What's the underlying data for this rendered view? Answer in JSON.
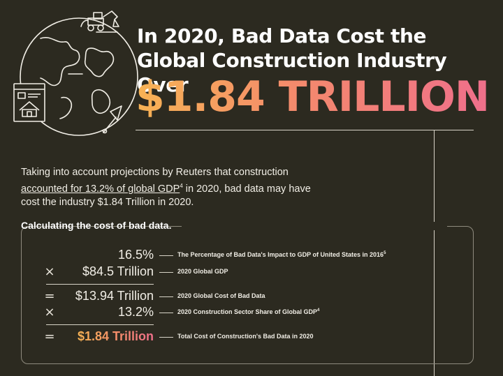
{
  "header": {
    "title": "In 2020, Bad Data Cost the Global Construction Industry Over",
    "amount": "$1.84 TRILLION",
    "gradient_colors": [
      "#f7b354",
      "#f48a6c",
      "#ef6f8b"
    ]
  },
  "intro": {
    "text_before": "Taking into account projections by Reuters that construction ",
    "link_text": "accounted for 13.2% of global GDP",
    "link_footnote": "4",
    "text_after": " in 2020, bad data may have cost the industry $1.84 Trillion in 2020."
  },
  "calc": {
    "title": "Calculating the cost of bad data.",
    "rows": [
      {
        "op": "",
        "value": "16.5%",
        "label": "The Percentage of Bad Data's Impact to GDP of United States in 2016",
        "footnote": "5"
      },
      {
        "op": "×",
        "value": "$84.5 Trillion",
        "label": "2020 Global GDP",
        "footnote": ""
      },
      {
        "op": "=",
        "value": "$13.94 Trillion",
        "label": "2020 Global Cost of Bad Data",
        "footnote": ""
      },
      {
        "op": "×",
        "value": "13.2%",
        "label": "2020 Construction Sector Share of Global GDP",
        "footnote": "4"
      },
      {
        "op": "=",
        "value": "$1.84 Trillion",
        "label": "Total Cost of Construction's Bad Data in 2020",
        "footnote": ""
      }
    ]
  },
  "icons": [
    "globe-icon",
    "excavator-icon",
    "house-document-icon",
    "trowel-icon"
  ],
  "colors": {
    "background": "#2c2a20",
    "text": "#f1eee6",
    "rule": "#d8d4c8"
  }
}
